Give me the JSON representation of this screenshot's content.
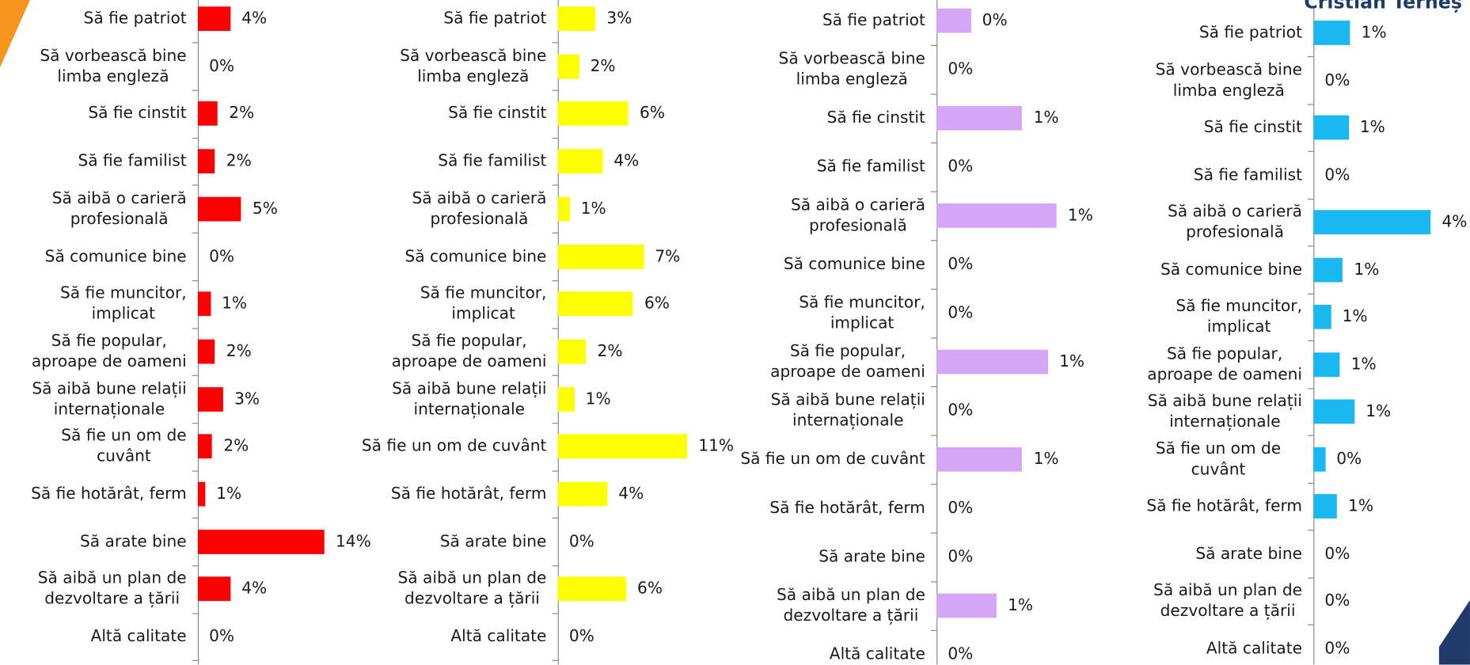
{
  "chart_data": [
    {
      "type": "bar",
      "orientation": "horizontal",
      "color": "#ff0000",
      "xlim": [
        0,
        14
      ],
      "categories": [
        "Să fie patriot",
        "Să vorbească bine\nlimba engleză",
        "Să fie cinstit",
        "Să fie familist",
        "Să aibă o carieră\nprofesională",
        "Să comunice bine",
        "Să fie muncitor,\nimplicat",
        "Să fie popular,\naproape de oameni",
        "Să aibă bune relații\ninternaționale",
        "Să fie un om de\ncuvânt",
        "Să fie hotărât, ferm",
        "Să arate bine",
        "Să aibă un plan de\ndezvoltare a țării",
        "Altă calitate"
      ],
      "values": [
        3.6,
        0,
        2.2,
        1.9,
        4.8,
        0,
        1.4,
        1.9,
        2.8,
        1.6,
        0.8,
        14,
        3.6,
        0
      ],
      "value_labels": [
        "4%",
        "0%",
        "2%",
        "2%",
        "5%",
        "0%",
        "1%",
        "2%",
        "3%",
        "2%",
        "1%",
        "14%",
        "4%",
        "0%"
      ]
    },
    {
      "type": "bar",
      "orientation": "horizontal",
      "color": "#ffff00",
      "xlim": [
        0,
        11
      ],
      "categories": [
        "Să fie patriot",
        "Să vorbească bine\nlimba engleză",
        "Să fie cinstit",
        "Să fie familist",
        "Să aibă o carieră\nprofesională",
        "Să comunice bine",
        "Să fie muncitor,\nimplicat",
        "Să fie popular,\naproape de oameni",
        "Să aibă bune relații\ninternaționale",
        "Să fie un om de cuvânt",
        "Să fie hotărât, ferm",
        "Să arate bine",
        "Să aibă un plan de\ndezvoltare a țării",
        "Altă calitate"
      ],
      "values": [
        3.2,
        1.8,
        6.0,
        3.8,
        1.0,
        7.3,
        6.4,
        2.4,
        1.4,
        11,
        4.2,
        0,
        5.8,
        0
      ],
      "value_labels": [
        "3%",
        "2%",
        "6%",
        "4%",
        "1%",
        "7%",
        "6%",
        "2%",
        "1%",
        "11%",
        "4%",
        "0%",
        "6%",
        "0%"
      ]
    },
    {
      "type": "bar",
      "orientation": "horizontal",
      "color": "#d5a6f5",
      "xlim": [
        0,
        1.4
      ],
      "categories": [
        "Să fie patriot",
        "Să vorbească bine\nlimba engleză",
        "Să fie cinstit",
        "Să fie familist",
        "Să aibă o carieră\nprofesională",
        "Să comunice bine",
        "Să fie muncitor,\nimplicat",
        "Să fie popular,\naproape de oameni",
        "Să aibă bune relații\ninternaționale",
        "Să fie un om de cuvânt",
        "Să fie hotărât, ferm",
        "Să arate bine",
        "Să aibă un plan de\ndezvoltare a țării",
        "Altă calitate"
      ],
      "values": [
        0.4,
        0,
        1.0,
        0,
        1.4,
        0,
        0,
        1.3,
        0,
        1.0,
        0,
        0,
        0.7,
        0
      ],
      "value_labels": [
        "0%",
        "0%",
        "1%",
        "0%",
        "1%",
        "0%",
        "0%",
        "1%",
        "0%",
        "1%",
        "0%",
        "0%",
        "1%",
        "0%"
      ]
    },
    {
      "type": "bar",
      "orientation": "horizontal",
      "color": "#1ab8f0",
      "xlim": [
        0,
        4
      ],
      "title": "Cristian Terheș",
      "categories": [
        "Să fie patriot",
        "Să vorbească bine\nlimba engleză",
        "Să fie cinstit",
        "Să fie familist",
        "Să aibă o carieră\nprofesională",
        "Să comunice bine",
        "Să fie muncitor,\nimplicat",
        "Să fie popular,\naproape de oameni",
        "Să aibă bune relații\ninternaționale",
        "Să fie un om de cuvânt",
        "Să fie hotărât, ferm",
        "Să arate bine",
        "Să aibă un plan de\ndezvoltare a țării",
        "Altă calitate"
      ],
      "values": [
        1.25,
        0,
        1.2,
        0,
        4,
        1.0,
        0.6,
        0.9,
        1.4,
        0.4,
        0.8,
        0,
        0,
        0
      ],
      "value_labels": [
        "1%",
        "0%",
        "1%",
        "0%",
        "4%",
        "1%",
        "1%",
        "1%",
        "1%",
        "0%",
        "1%",
        "0%",
        "0%",
        "0%"
      ]
    }
  ]
}
